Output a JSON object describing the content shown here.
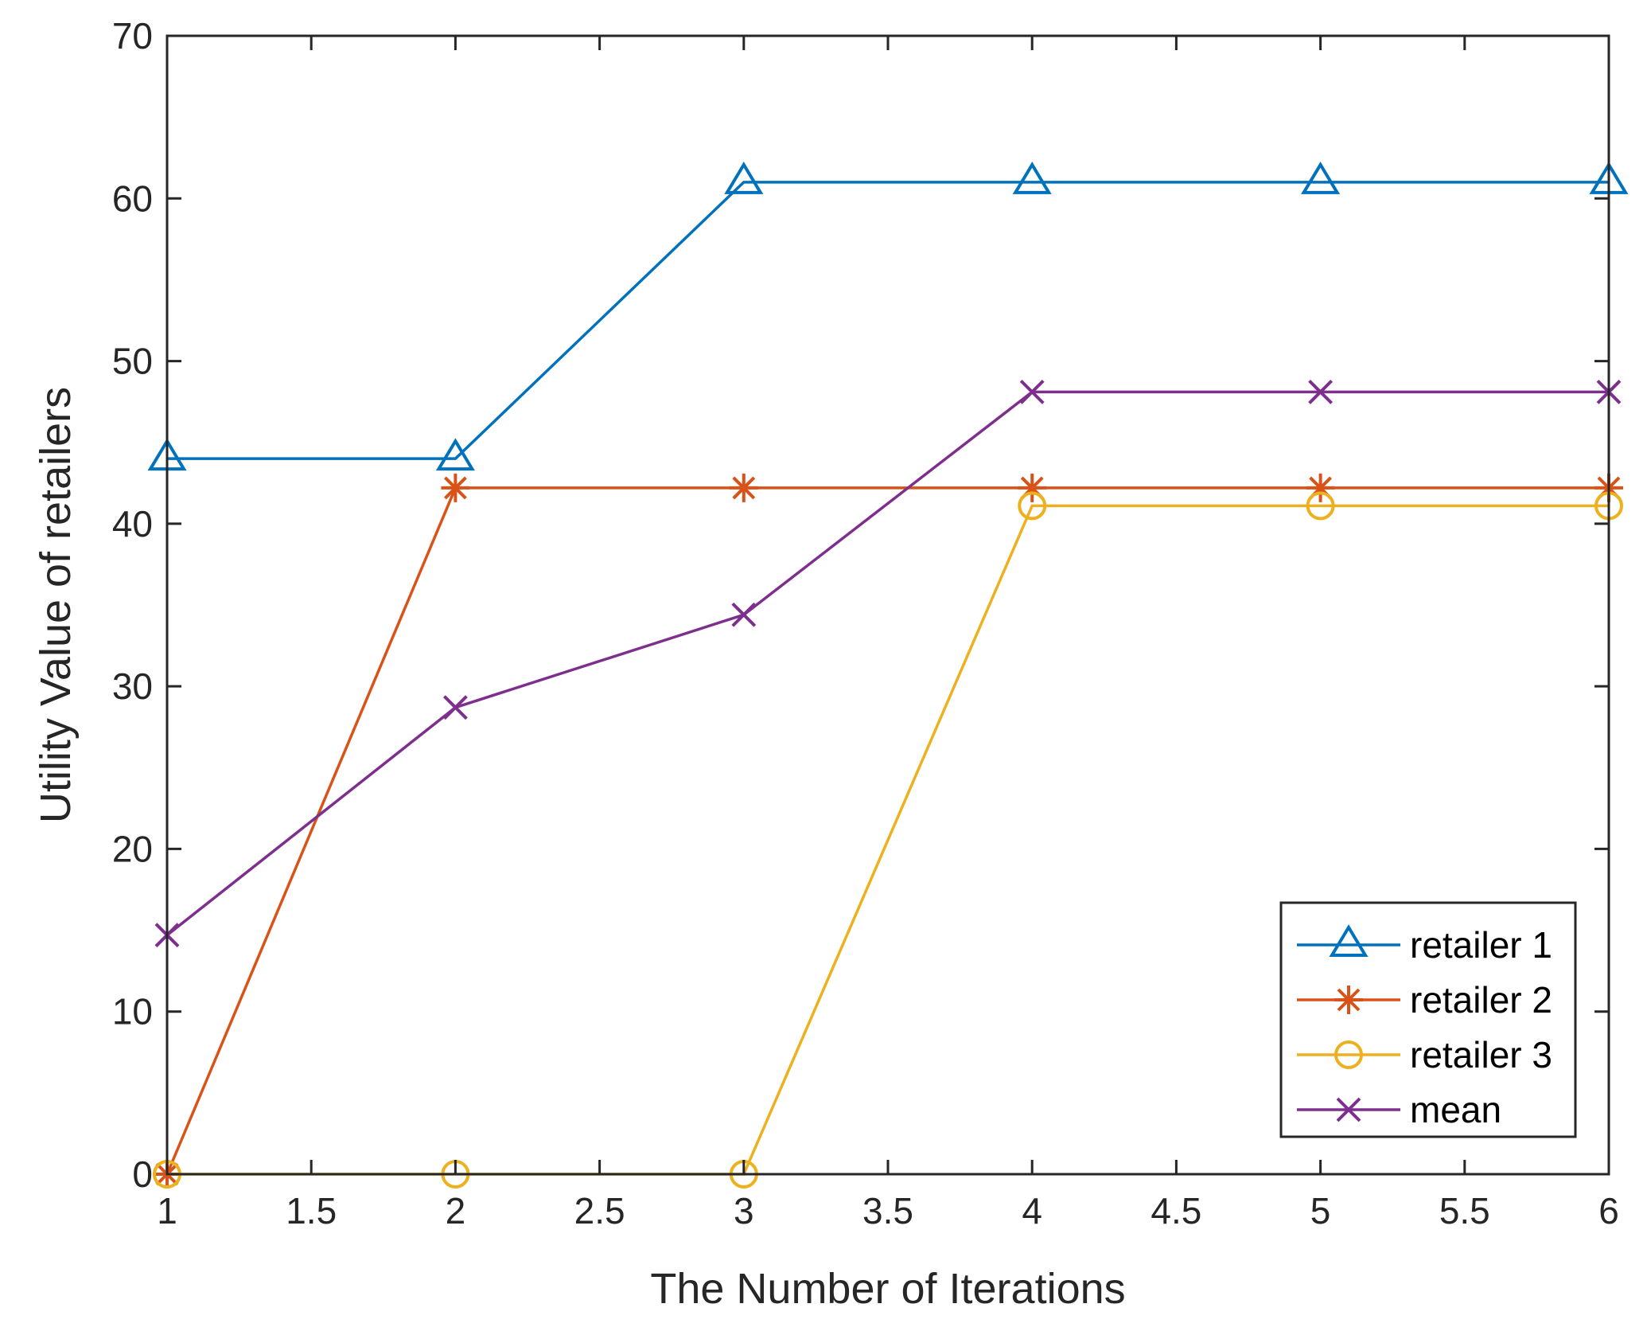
{
  "chart_data": {
    "type": "line",
    "title": "",
    "xlabel": "The Number of Iterations",
    "ylabel": "Utility Value of retailers",
    "xlim": [
      1,
      6
    ],
    "ylim": [
      0,
      70
    ],
    "xticks": [
      1,
      1.5,
      2,
      2.5,
      3,
      3.5,
      4,
      4.5,
      5,
      5.5,
      6
    ],
    "xtick_labels": [
      "1",
      "1.5",
      "2",
      "2.5",
      "3",
      "3.5",
      "4",
      "4.5",
      "5",
      "5.5",
      "6"
    ],
    "yticks": [
      0,
      10,
      20,
      30,
      40,
      50,
      60,
      70
    ],
    "ytick_labels": [
      "0",
      "10",
      "20",
      "30",
      "40",
      "50",
      "60",
      "70"
    ],
    "grid": false,
    "legend_position": "bottom-right",
    "x": [
      1,
      2,
      3,
      4,
      5,
      6
    ],
    "series": [
      {
        "name": "retailer 1",
        "values": [
          44,
          44,
          61,
          61,
          61,
          61
        ],
        "color": "#0072BD",
        "marker": "triangle"
      },
      {
        "name": "retailer 2",
        "values": [
          0,
          42.2,
          42.2,
          42.2,
          42.2,
          42.2
        ],
        "color": "#D95319",
        "marker": "asterisk"
      },
      {
        "name": "retailer 3",
        "values": [
          0,
          0,
          0,
          41.1,
          41.1,
          41.1
        ],
        "color": "#EDB120",
        "marker": "circle"
      },
      {
        "name": "mean",
        "values": [
          14.7,
          28.7,
          34.4,
          48.1,
          48.1,
          48.1
        ],
        "color": "#7E2F8E",
        "marker": "x"
      }
    ]
  }
}
